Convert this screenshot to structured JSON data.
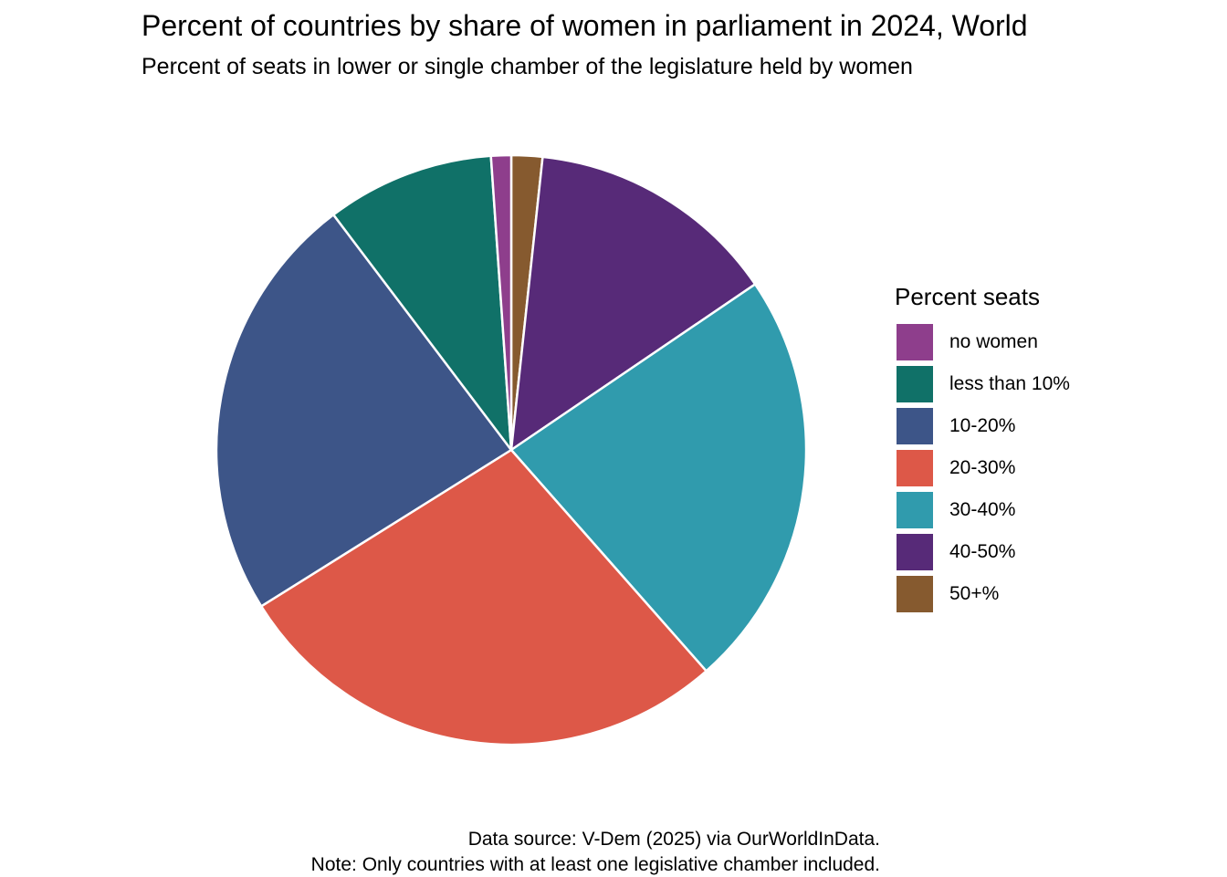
{
  "chart_data": {
    "type": "pie",
    "title": "Percent of countries by share of women in parliament in 2024, World",
    "subtitle": "Percent of seats in lower or single chamber of the legislature held by women",
    "legend": {
      "title": "Percent seats",
      "placement": "right"
    },
    "slices": [
      {
        "label": "50+%",
        "value": 1.7,
        "color": "#865A2F"
      },
      {
        "label": "40-50%",
        "value": 13.8,
        "color": "#572A78"
      },
      {
        "label": "30-40%",
        "value": 23.0,
        "color": "#309BAD"
      },
      {
        "label": "20-30%",
        "value": 27.6,
        "color": "#DD5848"
      },
      {
        "label": "10-20%",
        "value": 23.6,
        "color": "#3D5588"
      },
      {
        "label": "less than 10%",
        "value": 9.2,
        "color": "#107168"
      },
      {
        "label": "no women",
        "value": 1.1,
        "color": "#8E3E8C"
      }
    ],
    "legend_order": [
      "no women",
      "less than 10%",
      "10-20%",
      "20-30%",
      "30-40%",
      "40-50%",
      "50+%"
    ],
    "caption_source": "Data source: V-Dem (2025) via OurWorldInData.",
    "caption_note": "Note: Only countries with at least one legislative chamber included."
  }
}
